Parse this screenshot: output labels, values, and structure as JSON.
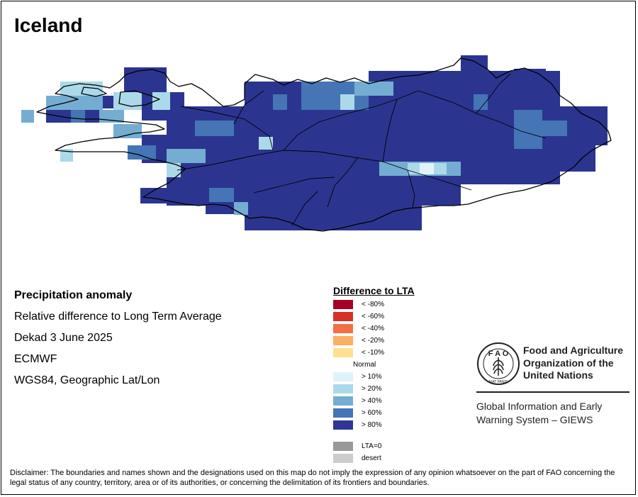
{
  "map": {
    "title": "Iceland",
    "colors": {
      "water_boundary": "#000000",
      "land_default": "#2b3590"
    }
  },
  "meta": {
    "product": "Precipitation anomaly",
    "description": "Relative difference to Long Term Average",
    "period": "Dekad 3 June 2025",
    "source": "ECMWF",
    "projection": "WGS84, Geographic Lat/Lon"
  },
  "legend": {
    "title": "Difference to LTA",
    "classes": [
      {
        "label": "< -80%",
        "color": "#a50026"
      },
      {
        "label": "< -60%",
        "color": "#d73027"
      },
      {
        "label": "< -40%",
        "color": "#f46d43"
      },
      {
        "label": "< -20%",
        "color": "#fdae61"
      },
      {
        "label": "< -10%",
        "color": "#fee090"
      },
      {
        "label": "Normal",
        "color": "#ffffff"
      },
      {
        "label": "> 10%",
        "color": "#e0f3f8"
      },
      {
        "label": "> 20%",
        "color": "#abd9e9"
      },
      {
        "label": "> 40%",
        "color": "#74add1"
      },
      {
        "label": "> 60%",
        "color": "#4575b4"
      },
      {
        "label": "> 80%",
        "color": "#313695"
      }
    ],
    "extra": [
      {
        "label": "LTA=0",
        "color": "#999999"
      },
      {
        "label": "desert",
        "color": "#cccccc"
      }
    ]
  },
  "organization": {
    "name_lines": "Food and Agriculture\nOrganization of the\nUnited Nations",
    "logo_letters": "FAO",
    "logo_motto": "FIAT PANIS",
    "system_lines": "Global Information and Early\nWarning System – GIEWS"
  },
  "disclaimer": "Disclaimer: The boundaries and names shown and the designations used on this map do not imply the expression of any opinion whatsoever on the part of FAO concerning the legal status of any country, territory, area or of its authorities, or concerning the delimitation of its frontiers and boundaries."
}
